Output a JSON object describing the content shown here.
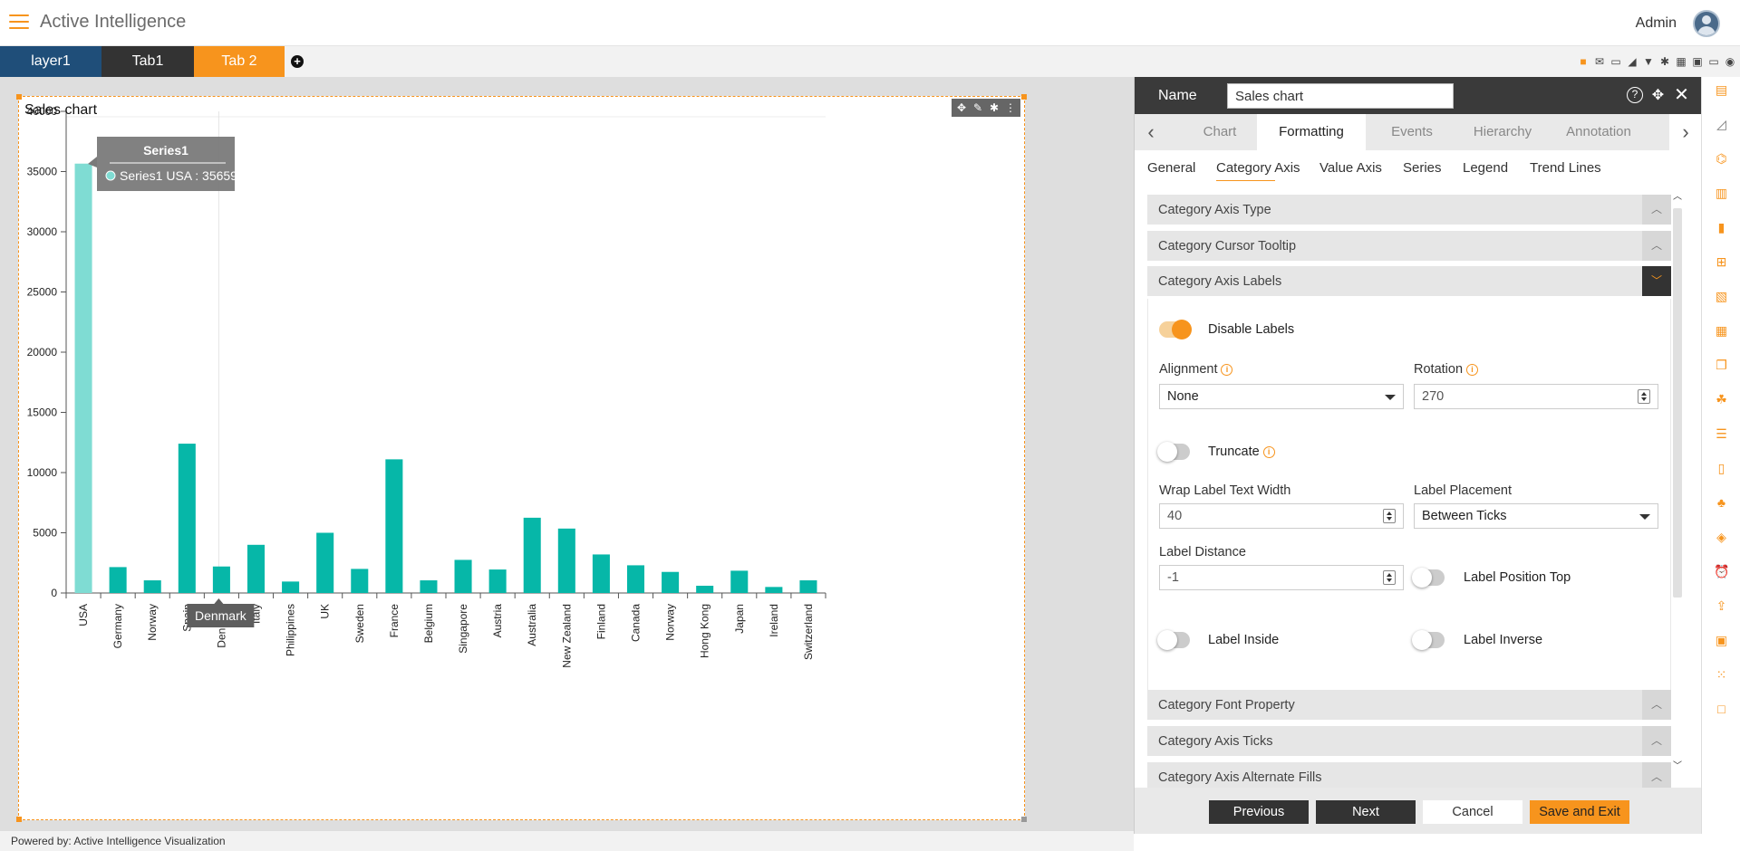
{
  "header": {
    "app_title": "Active Intelligence",
    "user_name": "Admin"
  },
  "tabs": {
    "items": [
      "layer1",
      "Tab1",
      "Tab 2"
    ],
    "active": "Tab 2"
  },
  "toolbar": {
    "icons": [
      "save-icon",
      "mail-icon",
      "comment-icon",
      "eraser-icon",
      "filter-icon",
      "gear-icon",
      "grid-icon",
      "window-icon",
      "monitor-icon",
      "eye-icon"
    ]
  },
  "widget": {
    "title": "Sales chart"
  },
  "chart_data": {
    "type": "bar",
    "title": "Sales chart",
    "categories": [
      "USA",
      "Germany",
      "Norway",
      "Spain",
      "Denmark",
      "Italy",
      "Philippines",
      "UK",
      "Sweden",
      "France",
      "Belgium",
      "Singapore",
      "Austria",
      "Australia",
      "New Zealand",
      "Finland",
      "Canada",
      "Norway",
      "Hong Kong",
      "Japan",
      "Ireland",
      "Switzerland"
    ],
    "series": [
      {
        "name": "Series1",
        "values": [
          35659,
          2150,
          1050,
          12400,
          2200,
          4000,
          950,
          5000,
          2000,
          11100,
          1050,
          2750,
          1950,
          6250,
          5350,
          3200,
          2300,
          1750,
          600,
          1850,
          500,
          1050
        ],
        "color": "#06b7a8"
      }
    ],
    "ylim": [
      0,
      40000
    ],
    "yticks": [
      0,
      5000,
      10000,
      15000,
      20000,
      25000,
      30000,
      35000,
      40000
    ],
    "xlabel": "",
    "ylabel": "",
    "highlighted": "USA",
    "highlight_color": "#7fdcd3",
    "tooltip": {
      "title": "Series1",
      "text": "Series1 USA : 35659"
    },
    "cursor_label": "Denmark",
    "grid": false
  },
  "panel": {
    "name_label": "Name",
    "name_value": "Sales chart",
    "tabs": [
      "Chart",
      "Formatting",
      "Events",
      "Hierarchy",
      "Annotation"
    ],
    "active_tab": "Formatting",
    "subtabs": [
      "General",
      "Category Axis",
      "Value Axis",
      "Series",
      "Legend",
      "Trend Lines"
    ],
    "active_subtab": "Category Axis",
    "sections": {
      "axis_type": "Category Axis Type",
      "cursor_tooltip": "Category Cursor Tooltip",
      "axis_labels": "Category Axis Labels",
      "font_property": "Category Font Property",
      "axis_ticks": "Category Axis Ticks",
      "alternate_fills": "Category Axis Alternate Fills"
    },
    "labels_form": {
      "disable_labels": "Disable Labels",
      "disable_labels_on": true,
      "alignment_label": "Alignment",
      "alignment_value": "None",
      "rotation_label": "Rotation",
      "rotation_value": "270",
      "truncate": "Truncate",
      "truncate_on": false,
      "wrap_label": "Wrap Label Text Width",
      "wrap_value": "40",
      "placement_label": "Label Placement",
      "placement_value": "Between Ticks",
      "distance_label": "Label Distance",
      "distance_value": "-1",
      "position_top": "Label Position Top",
      "label_inside": "Label Inside",
      "label_inverse": "Label Inverse"
    },
    "buttons": {
      "previous": "Previous",
      "next": "Next",
      "cancel": "Cancel",
      "save_exit": "Save and Exit"
    }
  },
  "footer": {
    "text": "Powered by: Active Intelligence Visualization"
  },
  "colors": {
    "accent": "#f7941d",
    "dark": "#333333",
    "navy": "#1f4e79",
    "bar": "#06b7a8"
  }
}
